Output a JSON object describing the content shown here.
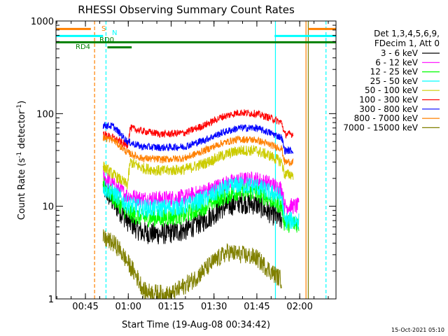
{
  "chart_data": {
    "type": "line",
    "title": "RHESSI Observing Summary Count Rates",
    "xlabel": "Start Time (19-Aug-08 00:34:42)",
    "ylabel_prefix": "Count Rate (s",
    "ylabel_sup1": "-1",
    "ylabel_mid": " detector",
    "ylabel_sup2": "-1",
    "ylabel_suffix": ")",
    "x_unit": "minutes since 00:34:42",
    "xlim": [
      0,
      98
    ],
    "ylim": [
      1,
      1000
    ],
    "yscale": "log",
    "x_ticks": [
      {
        "label": "00:45",
        "value": 10.3
      },
      {
        "label": "01:00",
        "value": 25.3
      },
      {
        "label": "01:15",
        "value": 40.3
      },
      {
        "label": "01:30",
        "value": 55.3
      },
      {
        "label": "01:45",
        "value": 70.3
      },
      {
        "label": "02:00",
        "value": 85.3
      }
    ],
    "y_ticks": [
      {
        "label": "1",
        "value": 1
      },
      {
        "label": "10",
        "value": 10
      },
      {
        "label": "100",
        "value": 100
      },
      {
        "label": "1000",
        "value": 1000
      }
    ],
    "legend_title": [
      "Det 1,3,4,5,6,9,",
      "FDecim 1, Att 0"
    ],
    "legend_position": "right",
    "series": [
      {
        "name": "3 - 6 keV",
        "color": "#000000",
        "noise": 0.12,
        "points": [
          [
            16.5,
            16
          ],
          [
            20,
            11
          ],
          [
            25,
            7
          ],
          [
            30,
            5.2
          ],
          [
            37,
            5
          ],
          [
            45,
            5.5
          ],
          [
            52,
            7
          ],
          [
            58,
            9.5
          ],
          [
            64,
            11
          ],
          [
            70,
            10.5
          ],
          [
            75,
            8.5
          ],
          [
            79,
            7
          ]
        ]
      },
      {
        "name": "6 - 12 keV",
        "color": "#ff00ff",
        "noise": 0.09,
        "points": [
          [
            16.5,
            21
          ],
          [
            20,
            17
          ],
          [
            25,
            13
          ],
          [
            30,
            12
          ],
          [
            37,
            12
          ],
          [
            45,
            12.5
          ],
          [
            52,
            14.5
          ],
          [
            58,
            17
          ],
          [
            64,
            19
          ],
          [
            70,
            19.5
          ],
          [
            75,
            17.5
          ],
          [
            79,
            15.5
          ],
          [
            80,
            10
          ],
          [
            85,
            10
          ]
        ]
      },
      {
        "name": "12 - 25 keV",
        "color": "#00ff00",
        "noise": 0.1,
        "points": [
          [
            16.5,
            17
          ],
          [
            20,
            12.5
          ],
          [
            25,
            8.5
          ],
          [
            30,
            7.5
          ],
          [
            37,
            7.5
          ],
          [
            45,
            8
          ],
          [
            52,
            10
          ],
          [
            58,
            12.5
          ],
          [
            64,
            14.5
          ],
          [
            70,
            14
          ],
          [
            75,
            12
          ],
          [
            79,
            10
          ],
          [
            80,
            6.5
          ],
          [
            85,
            6.5
          ]
        ]
      },
      {
        "name": "25 - 50 keV",
        "color": "#00ffff",
        "noise": 0.1,
        "points": [
          [
            16.5,
            16
          ],
          [
            20,
            14
          ],
          [
            25,
            10.5
          ],
          [
            30,
            9.5
          ],
          [
            37,
            9.5
          ],
          [
            45,
            10
          ],
          [
            52,
            12
          ],
          [
            58,
            15
          ],
          [
            64,
            17
          ],
          [
            70,
            16.5
          ],
          [
            75,
            14
          ],
          [
            79,
            12.5
          ],
          [
            80,
            7
          ],
          [
            85,
            7
          ]
        ]
      },
      {
        "name": "50 - 100 keV",
        "color": "#cccc00",
        "noise": 0.06,
        "points": [
          [
            16.5,
            27
          ],
          [
            20,
            22
          ],
          [
            25,
            17
          ],
          [
            26,
            30
          ],
          [
            30,
            26
          ],
          [
            37,
            24
          ],
          [
            45,
            25
          ],
          [
            52,
            29
          ],
          [
            58,
            35
          ],
          [
            64,
            40
          ],
          [
            70,
            40
          ],
          [
            75,
            35
          ],
          [
            79,
            30
          ],
          [
            80,
            22
          ],
          [
            83,
            22
          ]
        ]
      },
      {
        "name": "100 - 300 keV",
        "color": "#ff0000",
        "noise": 0.04,
        "points": [
          [
            16.5,
            60
          ],
          [
            20,
            55
          ],
          [
            25,
            45
          ],
          [
            26,
            70
          ],
          [
            30,
            65
          ],
          [
            37,
            60
          ],
          [
            45,
            62
          ],
          [
            52,
            75
          ],
          [
            58,
            92
          ],
          [
            64,
            103
          ],
          [
            70,
            100
          ],
          [
            75,
            90
          ],
          [
            79,
            80
          ],
          [
            80,
            60
          ],
          [
            83,
            60
          ]
        ]
      },
      {
        "name": "300 - 800 keV",
        "color": "#0000ff",
        "noise": 0.04,
        "points": [
          [
            16.5,
            75
          ],
          [
            20,
            73
          ],
          [
            25,
            50
          ],
          [
            30,
            44
          ],
          [
            37,
            43
          ],
          [
            45,
            44
          ],
          [
            52,
            52
          ],
          [
            58,
            62
          ],
          [
            64,
            70
          ],
          [
            70,
            70
          ],
          [
            75,
            62
          ],
          [
            79,
            55
          ],
          [
            80,
            40
          ],
          [
            83,
            40
          ]
        ]
      },
      {
        "name": "800 - 7000 keV",
        "color": "#ff8000",
        "noise": 0.04,
        "points": [
          [
            16.5,
            55
          ],
          [
            20,
            52
          ],
          [
            25,
            38
          ],
          [
            30,
            33
          ],
          [
            37,
            32
          ],
          [
            45,
            33
          ],
          [
            52,
            40
          ],
          [
            58,
            48
          ],
          [
            64,
            53
          ],
          [
            70,
            52
          ],
          [
            75,
            46
          ],
          [
            79,
            42
          ],
          [
            80,
            30
          ],
          [
            83,
            30
          ]
        ]
      },
      {
        "name": "7000 - 15000 keV",
        "color": "#808000",
        "noise": 0.1,
        "points": [
          [
            16.5,
            4.5
          ],
          [
            20,
            4
          ],
          [
            22,
            3.5
          ],
          [
            25,
            2.5
          ],
          [
            28,
            1.8
          ],
          [
            31,
            1.2
          ],
          [
            40,
            1.1
          ],
          [
            48,
            1.6
          ],
          [
            55,
            2.5
          ],
          [
            60,
            3.2
          ],
          [
            65,
            3
          ],
          [
            70,
            2.8
          ],
          [
            75,
            2
          ],
          [
            79,
            1.6
          ]
        ]
      }
    ],
    "flags": [
      {
        "label": "S",
        "color": "#ff8000",
        "segments": [
          [
            0,
            12.2
          ],
          [
            88.3,
            98
          ]
        ],
        "level": 820
      },
      {
        "label": "N",
        "color": "#00ffff",
        "segments": [
          [
            0,
            16.5
          ],
          [
            76.5,
            98
          ]
        ],
        "level": 690
      },
      {
        "label": "RD0",
        "color": "#008000",
        "segments": [
          [
            0,
            98
          ]
        ],
        "level": 590
      },
      {
        "label": "RD4",
        "color": "#008000",
        "segments": [
          [
            18,
            26.5
          ]
        ],
        "level": 520
      }
    ],
    "vlines": [
      {
        "x": 13.5,
        "color": "#ff8000",
        "style": "dashed"
      },
      {
        "x": 17.5,
        "color": "#00ffff",
        "style": "dashed"
      },
      {
        "x": 94.5,
        "color": "#00ffff",
        "style": "dashed"
      },
      {
        "x": 76.8,
        "color": "#00ffff",
        "style": "solid"
      },
      {
        "x": 87.5,
        "color": "#ff8000",
        "style": "solid"
      },
      {
        "x": 88.3,
        "color": "#808000",
        "style": "solid"
      }
    ],
    "footer": "15-Oct-2021 05:10"
  }
}
